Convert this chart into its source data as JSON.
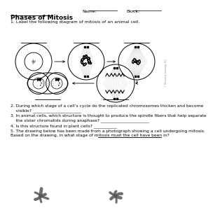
{
  "title": "Phases of Mitosis",
  "header_name": "Name:",
  "header_block": "Block:",
  "q1": "1. Label the following diagram of mitosis of an animal cell.",
  "q2_line1": "2. During which stage of a cell’s cycle do the replicated chromosomes thicken and become",
  "q2_line2": "    visible? _______________________",
  "q3_line1": "3. In animal cells, which structure is thought to produce the spindle fibers that help separate",
  "q3_line2": "    the sister chromatids during anaphase? _______________________",
  "q4": "4. Is this structure found in plant cells? ___________",
  "q5_line1": "5. The drawing below has been made from a photograph showing a cell undergoing mitosis.",
  "q5_line2": "Based on the drawing, in what stage of mitosis must the cell have been in?",
  "background": "#ffffff",
  "text_color": "#000000",
  "diagram_color": "#444444",
  "cell_lw": 0.7,
  "copyright": "© Discovery Learning, LLC"
}
